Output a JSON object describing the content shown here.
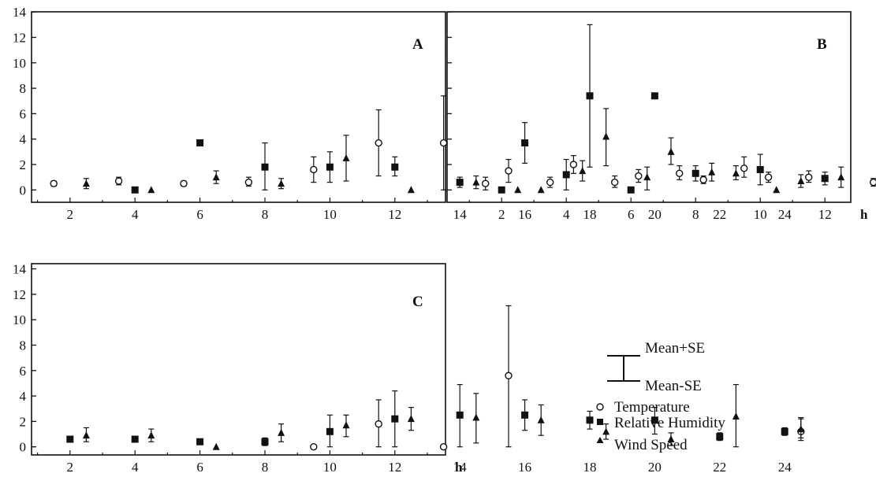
{
  "chart_data": [
    {
      "panel": "A",
      "type": "scatter",
      "xlabel": "h",
      "xlim": [
        1.5,
        24.5
      ],
      "ylim": [
        -1,
        14
      ],
      "xticks": [
        2,
        4,
        6,
        8,
        10,
        12,
        14,
        16,
        18,
        20,
        22,
        24
      ],
      "yticks": [
        0,
        2,
        4,
        6,
        8,
        10,
        12,
        14
      ],
      "series": [
        {
          "name": "Temperature",
          "points": [
            {
              "x": 1.5,
              "y": 0.5,
              "lo": 0.3,
              "hi": 0.7
            },
            {
              "x": 3.5,
              "y": 0.7,
              "lo": 0.4,
              "hi": 1.0
            },
            {
              "x": 5.5,
              "y": 0.5,
              "lo": 0.3,
              "hi": 0.7
            },
            {
              "x": 7.5,
              "y": 0.6,
              "lo": 0.3,
              "hi": 1.0
            },
            {
              "x": 9.5,
              "y": 1.6,
              "lo": 0.6,
              "hi": 2.6
            },
            {
              "x": 11.5,
              "y": 3.7,
              "lo": 1.1,
              "hi": 6.3
            },
            {
              "x": 13.5,
              "y": 3.7,
              "lo": 0.0,
              "hi": 7.4
            },
            {
              "x": 15.5,
              "y": 1.5,
              "lo": 0.6,
              "hi": 2.4
            },
            {
              "x": 17.5,
              "y": 2.0,
              "lo": 1.3,
              "hi": 2.7
            },
            {
              "x": 19.5,
              "y": 1.1,
              "lo": 0.6,
              "hi": 1.6
            },
            {
              "x": 21.5,
              "y": 0.8,
              "lo": 0.5,
              "hi": 1.1
            },
            {
              "x": 23.5,
              "y": 1.0,
              "lo": 0.6,
              "hi": 1.4
            }
          ]
        },
        {
          "name": "Relative Humidity",
          "points": [
            {
              "x": 4.0,
              "y": 0.0
            },
            {
              "x": 6.0,
              "y": 3.7
            },
            {
              "x": 8.0,
              "y": 1.8,
              "lo": 0.0,
              "hi": 3.7
            },
            {
              "x": 10.0,
              "y": 1.8,
              "lo": 0.6,
              "hi": 3.0
            },
            {
              "x": 12.0,
              "y": 1.8,
              "lo": 1.1,
              "hi": 2.6
            },
            {
              "x": 14.0,
              "y": 0.6,
              "lo": 0.2,
              "hi": 1.0
            },
            {
              "x": 16.0,
              "y": 3.7,
              "lo": 2.1,
              "hi": 5.3
            },
            {
              "x": 18.0,
              "y": 7.4,
              "lo": 1.8,
              "hi": 13.0
            },
            {
              "x": 20.0,
              "y": 7.4
            }
          ]
        },
        {
          "name": "Wind Speed",
          "points": [
            {
              "x": 2.5,
              "y": 0.5,
              "lo": 0.1,
              "hi": 0.9
            },
            {
              "x": 4.5,
              "y": 0.0
            },
            {
              "x": 6.5,
              "y": 1.0,
              "lo": 0.5,
              "hi": 1.5
            },
            {
              "x": 8.5,
              "y": 0.5,
              "lo": 0.1,
              "hi": 0.9
            },
            {
              "x": 10.5,
              "y": 2.5,
              "lo": 0.7,
              "hi": 4.3
            },
            {
              "x": 12.5,
              "y": 0.0
            },
            {
              "x": 14.5,
              "y": 0.6,
              "lo": 0.1,
              "hi": 1.1
            },
            {
              "x": 16.5,
              "y": 0.0
            },
            {
              "x": 18.5,
              "y": 4.2,
              "lo": 1.9,
              "hi": 6.4
            },
            {
              "x": 20.5,
              "y": 3.0,
              "lo": 2.0,
              "hi": 4.1
            },
            {
              "x": 22.5,
              "y": 1.3,
              "lo": 0.8,
              "hi": 1.9
            },
            {
              "x": 24.5,
              "y": 0.7,
              "lo": 0.2,
              "hi": 1.2
            }
          ]
        }
      ]
    },
    {
      "panel": "B",
      "type": "scatter",
      "xlabel": "h",
      "xlim": [
        1.5,
        24.5
      ],
      "ylim": [
        -1,
        14
      ],
      "xticks": [
        2,
        4,
        6,
        8,
        10,
        12,
        14,
        16,
        18,
        20,
        22,
        24
      ],
      "yticks": [
        0,
        2,
        4,
        6,
        8,
        10,
        12,
        14
      ],
      "series": [
        {
          "name": "Temperature",
          "points": [
            {
              "x": 1.5,
              "y": 0.5,
              "lo": 0.0,
              "hi": 1.0
            },
            {
              "x": 3.5,
              "y": 0.6,
              "lo": 0.2,
              "hi": 1.0
            },
            {
              "x": 5.5,
              "y": 0.6,
              "lo": 0.2,
              "hi": 1.1
            },
            {
              "x": 7.5,
              "y": 1.3,
              "lo": 0.8,
              "hi": 1.9
            },
            {
              "x": 9.5,
              "y": 1.7,
              "lo": 1.0,
              "hi": 2.6
            },
            {
              "x": 11.5,
              "y": 1.0,
              "lo": 0.6,
              "hi": 1.5
            },
            {
              "x": 13.5,
              "y": 0.6,
              "lo": 0.3,
              "hi": 0.9
            },
            {
              "x": 15.5,
              "y": 2.6,
              "lo": 1.6,
              "hi": 3.6
            },
            {
              "x": 17.5,
              "y": 3.0,
              "lo": 1.3,
              "hi": 4.7
            },
            {
              "x": 19.5,
              "y": 3.3,
              "lo": 2.1,
              "hi": 4.5
            },
            {
              "x": 21.5,
              "y": 2.3,
              "lo": 0.5,
              "hi": 4.1
            },
            {
              "x": 23.5,
              "y": 1.4,
              "lo": 0.8,
              "hi": 1.9
            }
          ]
        },
        {
          "name": "Relative Humidity",
          "points": [
            {
              "x": 2.0,
              "y": 0.0
            },
            {
              "x": 4.0,
              "y": 1.2,
              "lo": 0.0,
              "hi": 2.4
            },
            {
              "x": 6.0,
              "y": 0.0
            },
            {
              "x": 8.0,
              "y": 1.3,
              "lo": 0.7,
              "hi": 1.9
            },
            {
              "x": 10.0,
              "y": 1.6,
              "lo": 0.4,
              "hi": 2.8
            },
            {
              "x": 12.0,
              "y": 0.9,
              "lo": 0.4,
              "hi": 1.4
            },
            {
              "x": 14.0,
              "y": 0.6,
              "lo": 0.1,
              "hi": 1.1
            },
            {
              "x": 16.0,
              "y": 1.2,
              "lo": 0.5,
              "hi": 1.9
            },
            {
              "x": 18.0,
              "y": 1.1,
              "lo": 0.1,
              "hi": 2.1
            },
            {
              "x": 20.0,
              "y": 1.2,
              "lo": 0.7,
              "hi": 1.7
            },
            {
              "x": 22.0,
              "y": 2.6,
              "lo": 0.6,
              "hi": 4.7
            },
            {
              "x": 24.0,
              "y": 1.2,
              "lo": 0.0,
              "hi": 2.4
            }
          ]
        },
        {
          "name": "Wind Speed",
          "points": [
            {
              "x": 2.5,
              "y": 0.0
            },
            {
              "x": 4.5,
              "y": 1.5,
              "lo": 0.7,
              "hi": 2.3
            },
            {
              "x": 6.5,
              "y": 1.0,
              "lo": 0.0,
              "hi": 1.8
            },
            {
              "x": 8.5,
              "y": 1.4,
              "lo": 0.7,
              "hi": 2.1
            },
            {
              "x": 10.5,
              "y": 0.0
            },
            {
              "x": 12.5,
              "y": 1.0,
              "lo": 0.2,
              "hi": 1.8
            },
            {
              "x": 14.5,
              "y": 0.0
            },
            {
              "x": 16.5,
              "y": 4.7,
              "lo": 3.4,
              "hi": 5.9
            },
            {
              "x": 18.5,
              "y": 2.8,
              "lo": 1.1,
              "hi": 4.5
            },
            {
              "x": 20.5,
              "y": 1.8,
              "lo": 0.8,
              "hi": 2.8
            },
            {
              "x": 22.5,
              "y": 0.0
            },
            {
              "x": 24.5,
              "y": 1.4,
              "lo": 0.6,
              "hi": 2.2
            }
          ]
        }
      ]
    },
    {
      "panel": "C",
      "type": "scatter",
      "xlabel": "h",
      "xlim": [
        1.5,
        24.5
      ],
      "ylim": [
        -1,
        14
      ],
      "xticks": [
        2,
        4,
        6,
        8,
        10,
        12,
        14,
        16,
        18,
        20,
        22,
        24
      ],
      "yticks": [
        0,
        2,
        4,
        6,
        8,
        10,
        12,
        14
      ],
      "series": [
        {
          "name": "Temperature",
          "points": [
            {
              "x": 9.5,
              "y": 0.0
            },
            {
              "x": 11.5,
              "y": 1.8,
              "lo": 0.0,
              "hi": 3.7
            },
            {
              "x": 13.5,
              "y": 0.0
            },
            {
              "x": 15.5,
              "y": 5.6,
              "lo": 0.0,
              "hi": 11.1
            },
            {
              "x": 24.5,
              "y": 1.2,
              "lo": 0.7,
              "hi": 2.2
            }
          ]
        },
        {
          "name": "Relative Humidity",
          "points": [
            {
              "x": 2.0,
              "y": 0.6,
              "lo": 0.4,
              "hi": 0.8
            },
            {
              "x": 4.0,
              "y": 0.6,
              "lo": 0.4,
              "hi": 0.8
            },
            {
              "x": 6.0,
              "y": 0.4,
              "lo": 0.2,
              "hi": 0.6
            },
            {
              "x": 8.0,
              "y": 0.4,
              "lo": 0.1,
              "hi": 0.7
            },
            {
              "x": 10.0,
              "y": 1.2,
              "lo": 0.0,
              "hi": 2.5
            },
            {
              "x": 12.0,
              "y": 2.2,
              "lo": 0.0,
              "hi": 4.4
            },
            {
              "x": 14.0,
              "y": 2.5,
              "lo": 0.0,
              "hi": 4.9
            },
            {
              "x": 16.0,
              "y": 2.5,
              "lo": 1.3,
              "hi": 3.7
            },
            {
              "x": 18.0,
              "y": 2.1,
              "lo": 1.4,
              "hi": 2.8
            },
            {
              "x": 20.0,
              "y": 2.1,
              "lo": 1.0,
              "hi": 3.1
            },
            {
              "x": 22.0,
              "y": 0.8,
              "lo": 0.5,
              "hi": 1.1
            },
            {
              "x": 24.0,
              "y": 1.2,
              "lo": 0.9,
              "hi": 1.5
            }
          ]
        },
        {
          "name": "Wind Speed",
          "points": [
            {
              "x": 2.5,
              "y": 0.9,
              "lo": 0.4,
              "hi": 1.5
            },
            {
              "x": 4.5,
              "y": 0.9,
              "lo": 0.4,
              "hi": 1.4
            },
            {
              "x": 6.5,
              "y": 0.0
            },
            {
              "x": 8.5,
              "y": 1.1,
              "lo": 0.4,
              "hi": 1.8
            },
            {
              "x": 10.5,
              "y": 1.7,
              "lo": 0.8,
              "hi": 2.5
            },
            {
              "x": 12.5,
              "y": 2.2,
              "lo": 1.3,
              "hi": 3.1
            },
            {
              "x": 14.5,
              "y": 2.3,
              "lo": 0.3,
              "hi": 4.2
            },
            {
              "x": 16.5,
              "y": 2.1,
              "lo": 0.9,
              "hi": 3.3
            },
            {
              "x": 18.5,
              "y": 1.2,
              "lo": 0.6,
              "hi": 1.8
            },
            {
              "x": 20.5,
              "y": 0.6,
              "lo": 0.1,
              "hi": 1.1
            },
            {
              "x": 22.5,
              "y": 2.4,
              "lo": 0.0,
              "hi": 4.9
            },
            {
              "x": 24.5,
              "y": 1.4,
              "lo": 0.5,
              "hi": 2.3
            }
          ]
        }
      ]
    }
  ],
  "legend": {
    "mean_plus_se": "Mean+SE",
    "mean_minus_se": "Mean-SE",
    "temperature": "Temperature",
    "relative_humidity": "Relative Humidity",
    "wind_speed": "Wind Speed"
  },
  "colors": {
    "marker": "#111111",
    "axis": "#111111"
  }
}
